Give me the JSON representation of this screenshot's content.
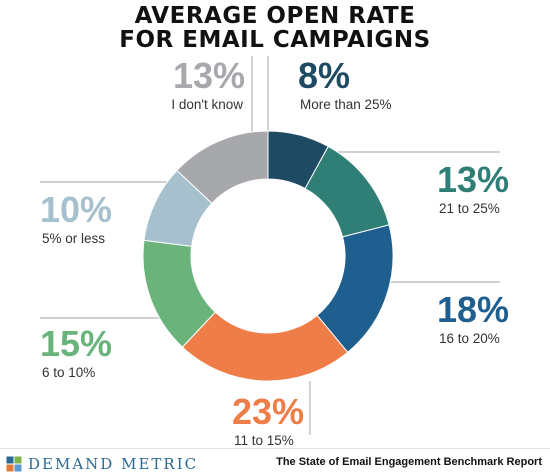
{
  "title_line1": "AVERAGE OPEN RATE",
  "title_line2": "FOR EMAIL CAMPAIGNS",
  "chart_data": {
    "type": "pie",
    "subtype": "donut",
    "title": "AVERAGE OPEN RATE FOR EMAIL CAMPAIGNS",
    "slices": [
      {
        "label": "More than 25%",
        "value": 8,
        "display": "8%",
        "color": "#1e4a63"
      },
      {
        "label": "21 to 25%",
        "value": 13,
        "display": "13%",
        "color": "#2f7f77"
      },
      {
        "label": "16 to 20%",
        "value": 18,
        "display": "18%",
        "color": "#1f5f8f"
      },
      {
        "label": "11 to 15%",
        "value": 23,
        "display": "23%",
        "color": "#ef7d47"
      },
      {
        "label": "6 to 10%",
        "value": 15,
        "display": "15%",
        "color": "#6ab47c"
      },
      {
        "label": "5% or less",
        "value": 10,
        "display": "10%",
        "color": "#a6c0ce"
      },
      {
        "label": "I don't know",
        "value": 13,
        "display": "13%",
        "color": "#a6a8ab"
      }
    ]
  },
  "footer": {
    "logo_text": "DEMAND METRIC",
    "logo_colors": [
      "#2c6a94",
      "#7fb24a",
      "#e07b39",
      "#5a9bd4"
    ],
    "source": "The State of Email Engagement Benchmark Report"
  }
}
